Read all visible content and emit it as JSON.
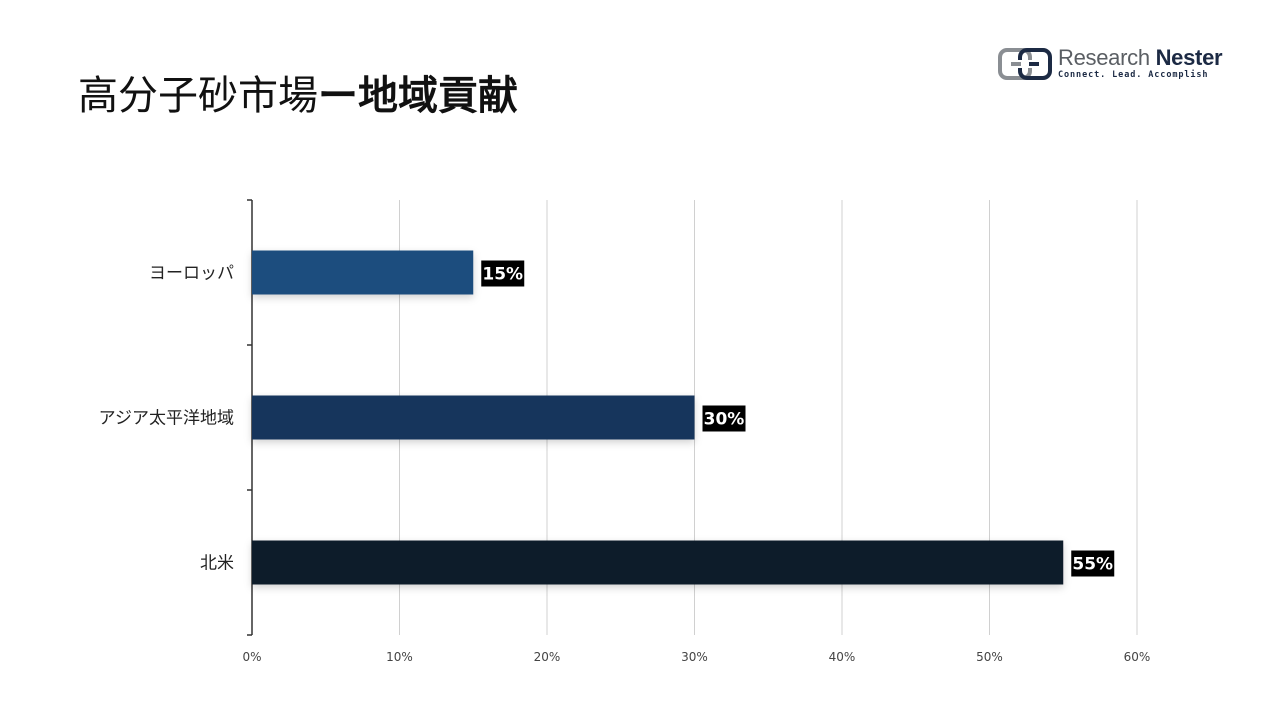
{
  "title": {
    "part_a": "高分子砂市場",
    "part_b": "ー地域貢献"
  },
  "logo": {
    "name_first": "Research",
    "name_second": "Nester",
    "tagline": "Connect. Lead. Accomplish",
    "icon": "research-nester-logo-icon"
  },
  "chart_data": {
    "type": "bar",
    "orientation": "horizontal",
    "categories": [
      "ヨーロッパ",
      "アジア太平洋地域",
      "北米"
    ],
    "values": [
      15,
      30,
      55
    ],
    "data_labels": [
      "15%",
      "30%",
      "55%"
    ],
    "bar_colors": [
      "#1f4e7e",
      "#16365b",
      "#0e1d2c"
    ],
    "xlim": [
      0,
      60
    ],
    "x_ticks": [
      0,
      10,
      20,
      30,
      40,
      50,
      60
    ],
    "x_tick_labels": [
      "0%",
      "10%",
      "20%",
      "30%",
      "40%",
      "50%",
      "60%"
    ],
    "grid": true,
    "legend": false
  }
}
